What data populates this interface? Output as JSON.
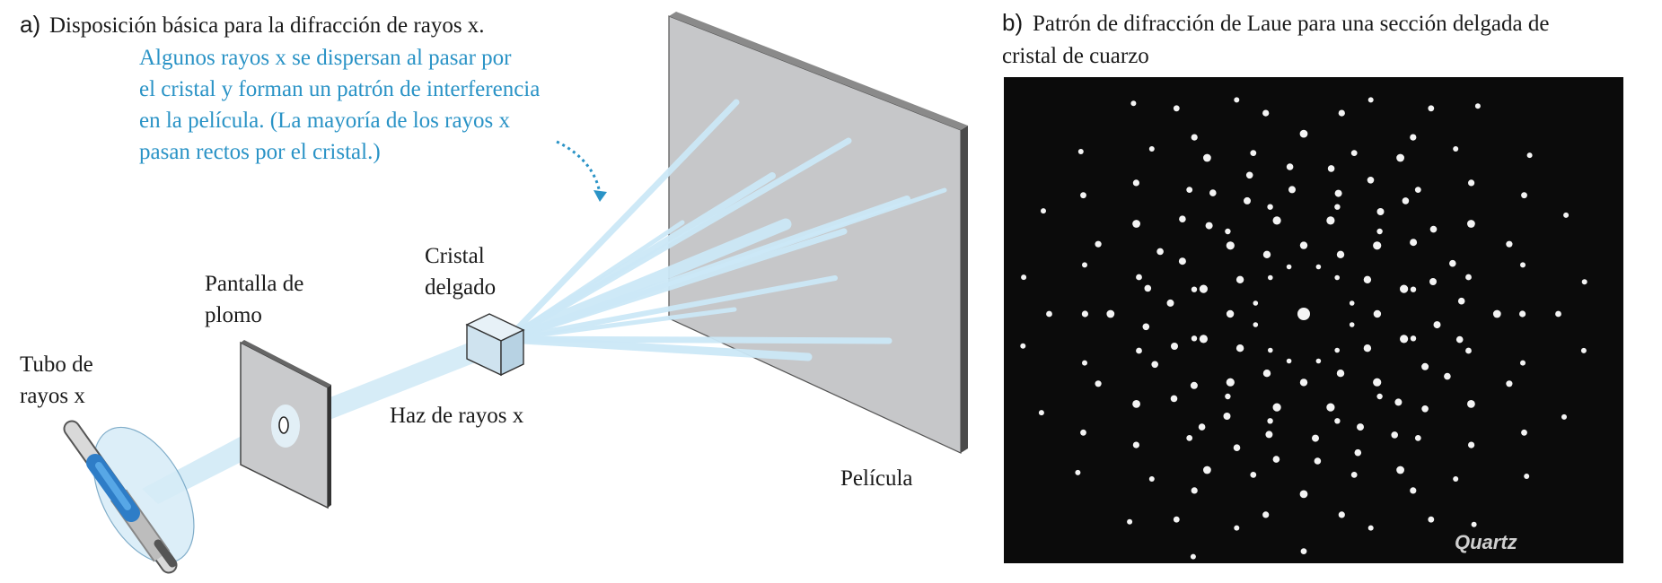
{
  "panel_a": {
    "letter": "a)",
    "title": "Disposición básica para la difracción de rayos x.",
    "note_lines": [
      "Algunos rayos x se dispersan al pasar por",
      "el cristal y forman un patrón de interferencia",
      "en la película. (La mayoría de los rayos x",
      "pasan rectos por el cristal.)"
    ],
    "labels": {
      "tube_line1": "Tubo de",
      "tube_line2": "rayos x",
      "screen_line1": "Pantalla de",
      "screen_line2": "plomo",
      "crystal_line1": "Cristal",
      "crystal_line2": "delgado",
      "beam": "Haz de rayos x",
      "film": "Película"
    }
  },
  "panel_b": {
    "letter": "b)",
    "title_line1": "Patrón de difracción de Laue para una sección delgada de",
    "title_line2": "cristal de cuarzo",
    "photo_caption": "Quartz"
  },
  "colors": {
    "note_text": "#2a93c6",
    "beam": "#c9e6f5",
    "film": "#c6c7c9",
    "screen": "#c9cacc",
    "photo_bg": "#0b0b0b",
    "spot": "#f4f4f4"
  }
}
